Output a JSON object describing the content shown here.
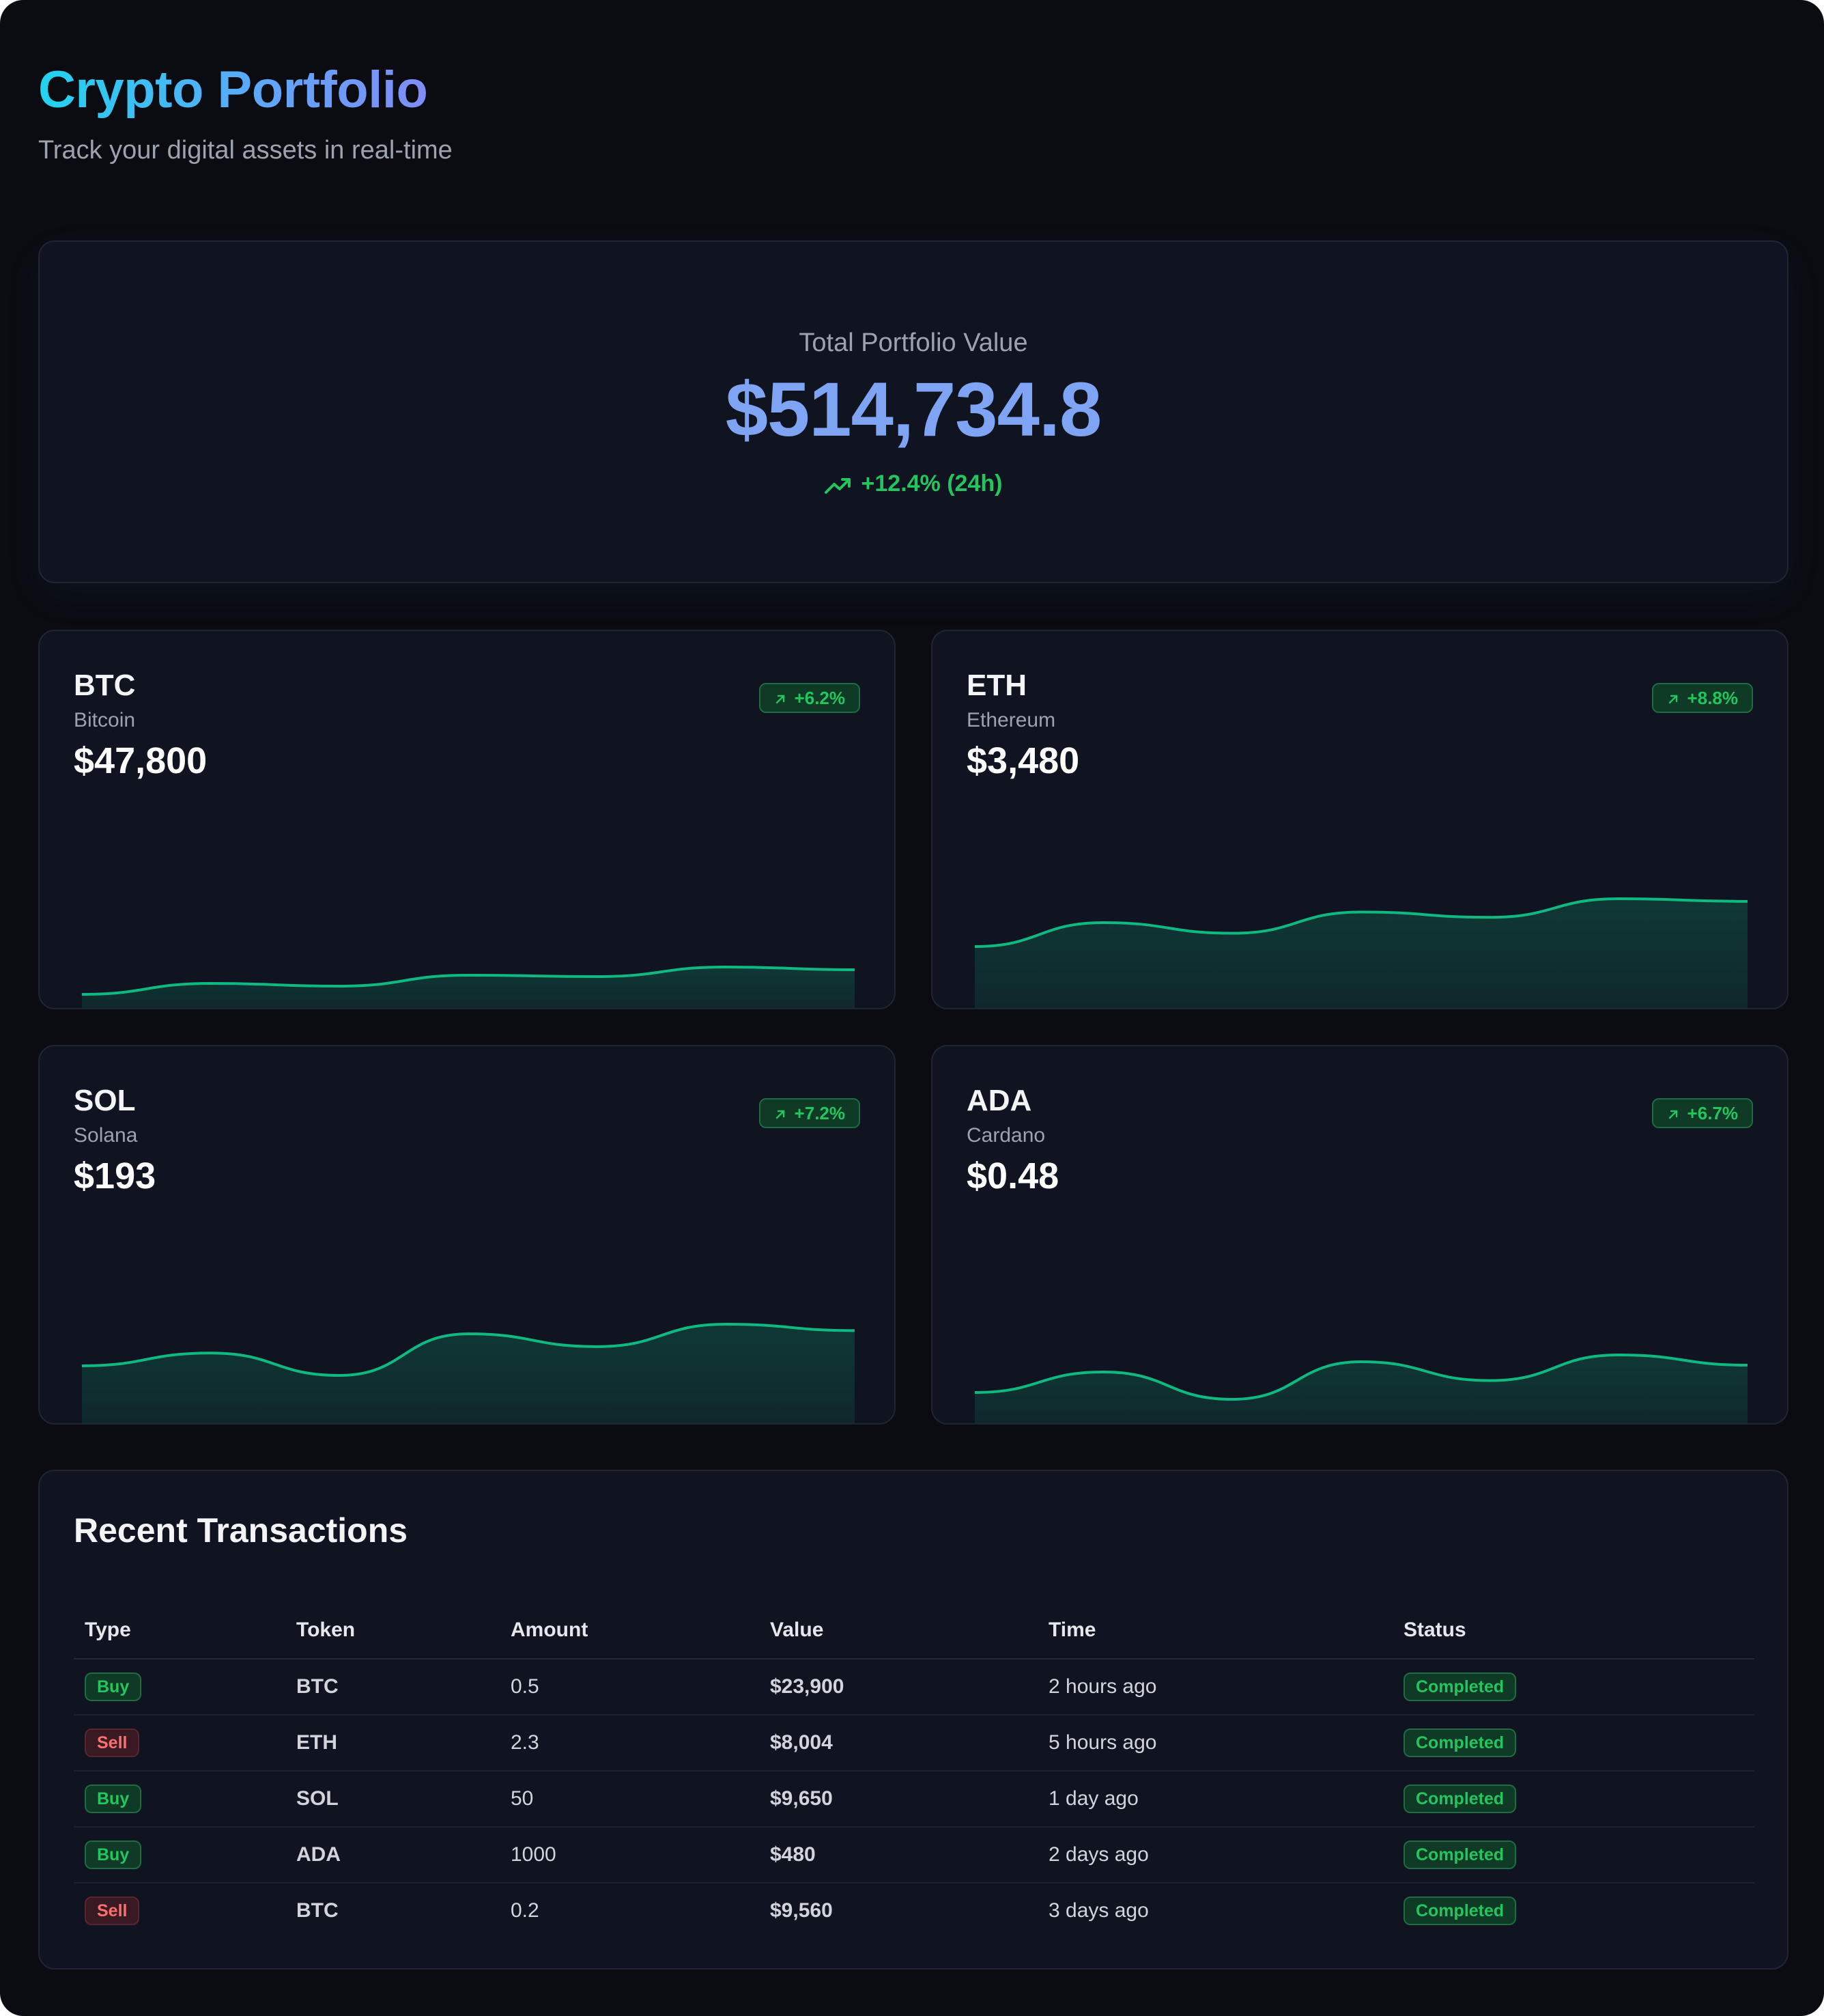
{
  "header": {
    "title": "Crypto Portfolio",
    "subtitle": "Track your digital assets in real-time"
  },
  "portfolio": {
    "label": "Total Portfolio Value",
    "value": "$514,734.8",
    "change": "+12.4% (24h)"
  },
  "assets": [
    {
      "symbol": "BTC",
      "name": "Bitcoin",
      "price": "$47,800",
      "change": "+6.2%",
      "trend": [
        45200,
        45600,
        45500,
        45900,
        45850,
        46200,
        46100
      ]
    },
    {
      "symbol": "ETH",
      "name": "Ethereum",
      "price": "$3,480",
      "change": "+8.8%",
      "trend": [
        3200,
        3290,
        3250,
        3330,
        3310,
        3380,
        3370
      ]
    },
    {
      "symbol": "SOL",
      "name": "Solana",
      "price": "$193",
      "change": "+7.2%",
      "trend": [
        178,
        182,
        175,
        188,
        184,
        191,
        189
      ]
    },
    {
      "symbol": "ADA",
      "name": "Cardano",
      "price": "$0.48",
      "change": "+6.7%",
      "trend": [
        0.44,
        0.452,
        0.436,
        0.458,
        0.447,
        0.462,
        0.456
      ]
    }
  ],
  "transactions": {
    "title": "Recent Transactions",
    "columns": [
      "Type",
      "Token",
      "Amount",
      "Value",
      "Time",
      "Status"
    ],
    "rows": [
      {
        "type": "Buy",
        "token": "BTC",
        "amount": "0.5",
        "value": "$23,900",
        "time": "2 hours ago",
        "status": "Completed"
      },
      {
        "type": "Sell",
        "token": "ETH",
        "amount": "2.3",
        "value": "$8,004",
        "time": "5 hours ago",
        "status": "Completed"
      },
      {
        "type": "Buy",
        "token": "SOL",
        "amount": "50",
        "value": "$9,650",
        "time": "1 day ago",
        "status": "Completed"
      },
      {
        "type": "Buy",
        "token": "ADA",
        "amount": "1000",
        "value": "$480",
        "time": "2 days ago",
        "status": "Completed"
      },
      {
        "type": "Sell",
        "token": "BTC",
        "amount": "0.2",
        "value": "$9,560",
        "time": "3 days ago",
        "status": "Completed"
      }
    ]
  },
  "colors": {
    "background": "#0a0c11",
    "card": "#0f1420",
    "accent_blue": "#7fa4f4",
    "positive": "#22c55e",
    "negative": "#f87171",
    "sparkline": "#10b981"
  }
}
